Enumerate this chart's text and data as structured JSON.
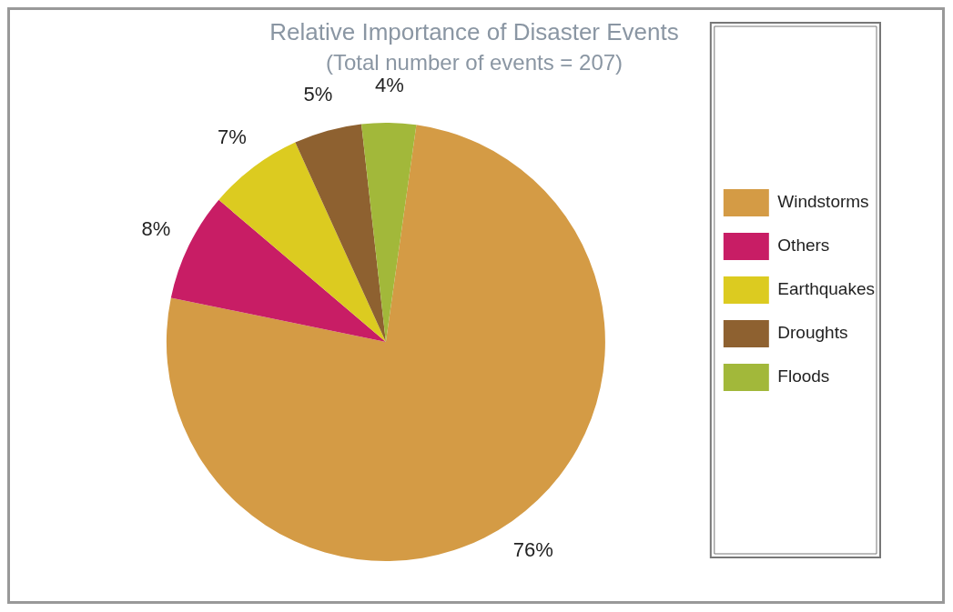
{
  "chart_data": {
    "type": "pie",
    "title": "Relative Importance of Disaster Events",
    "subtitle": "(Total number of events = 207)",
    "categories": [
      "Windstorms",
      "Others",
      "Earthquakes",
      "Droughts",
      "Floods"
    ],
    "values": [
      76,
      8,
      7,
      5,
      4
    ],
    "colors": [
      "#d49b45",
      "#c81d65",
      "#dccb20",
      "#8e6130",
      "#a2b83a"
    ],
    "value_labels": [
      "76%",
      "8%",
      "7%",
      "5%",
      "4%"
    ],
    "legend": "right"
  }
}
